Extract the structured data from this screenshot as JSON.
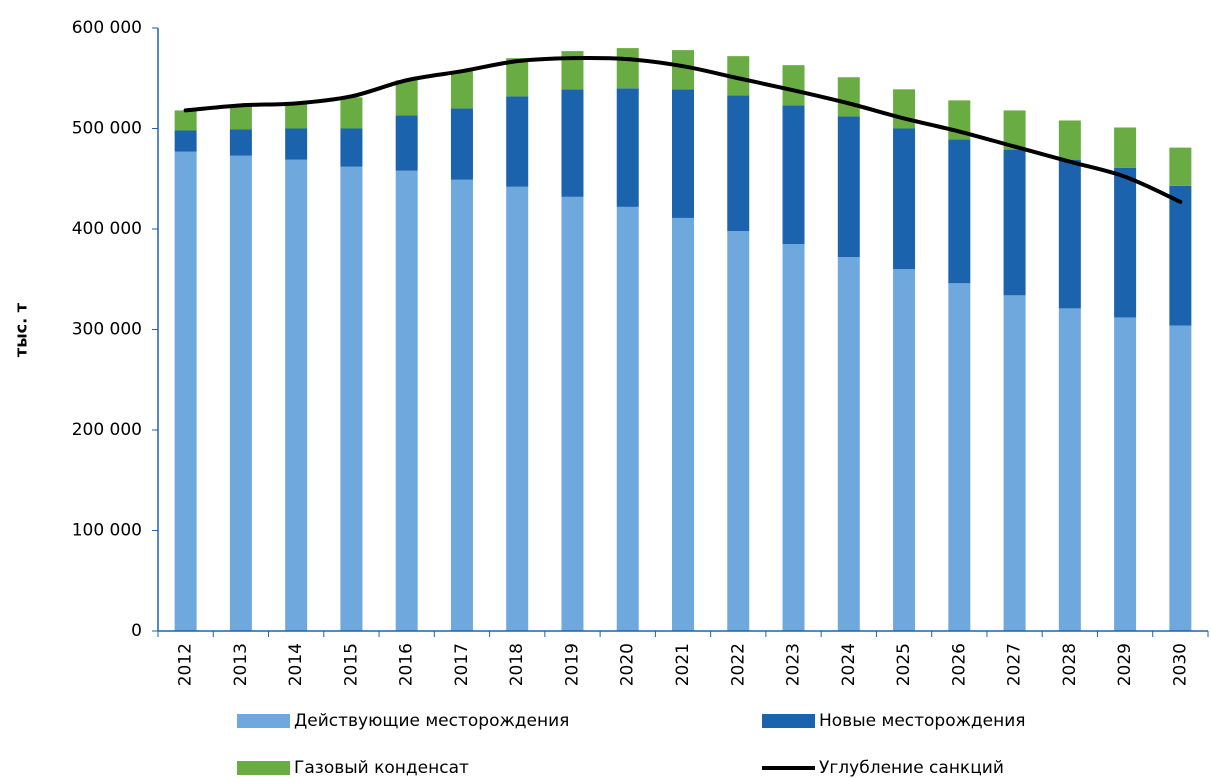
{
  "chart_data": {
    "type": "bar",
    "stacked": true,
    "y_label": "тыс. т",
    "categories": [
      "2012",
      "2013",
      "2014",
      "2015",
      "2016",
      "2017",
      "2018",
      "2019",
      "2020",
      "2021",
      "2022",
      "2023",
      "2024",
      "2025",
      "2026",
      "2027",
      "2028",
      "2029",
      "2030"
    ],
    "series": [
      {
        "name": "Действующие месторождения",
        "color": "#6fa8dc",
        "values": [
          477000,
          473000,
          469000,
          462000,
          458000,
          449000,
          442000,
          432000,
          422000,
          411000,
          398000,
          385000,
          372000,
          360000,
          346000,
          334000,
          321000,
          312000,
          304000
        ]
      },
      {
        "name": "Новые месторождения",
        "color": "#1b63ad",
        "values": [
          21000,
          26000,
          31000,
          38000,
          55000,
          71000,
          90000,
          107000,
          118000,
          128000,
          135000,
          138000,
          140000,
          140000,
          143000,
          145000,
          148000,
          149000,
          139000
        ]
      },
      {
        "name": "Газовый конденсат",
        "color": "#6aac44",
        "values": [
          20000,
          24000,
          26000,
          31000,
          35000,
          37000,
          38000,
          38000,
          40000,
          39000,
          39000,
          40000,
          39000,
          39000,
          39000,
          39000,
          39000,
          40000,
          38000
        ]
      },
      {
        "name": "Углубление санкций",
        "color": "#000000",
        "type": "line",
        "values": [
          518000,
          523000,
          525000,
          532000,
          548000,
          557000,
          567000,
          570000,
          569000,
          562000,
          550000,
          538000,
          525000,
          510000,
          497000,
          482000,
          467000,
          452000,
          427000
        ]
      }
    ],
    "ylim": [
      0,
      600000
    ],
    "yticks": [
      0,
      {
        "value": 100000,
        "label": "100 000"
      },
      {
        "value": 200000,
        "label": "200 000"
      },
      {
        "value": 300000,
        "label": "300 000"
      },
      {
        "value": 400000,
        "label": "400 000"
      },
      {
        "value": 500000,
        "label": "500 000"
      },
      {
        "value": 600000,
        "label": "600 000"
      }
    ],
    "grid": false
  }
}
